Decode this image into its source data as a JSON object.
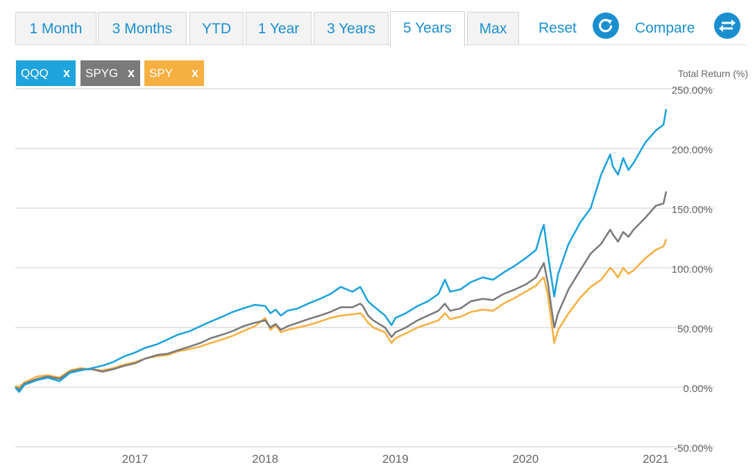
{
  "tabs": [
    {
      "label": "1 Month",
      "active": false
    },
    {
      "label": "3 Months",
      "active": false
    },
    {
      "label": "YTD",
      "active": false
    },
    {
      "label": "1 Year",
      "active": false
    },
    {
      "label": "3 Years",
      "active": false
    },
    {
      "label": "5 Years",
      "active": true
    },
    {
      "label": "Max",
      "active": false
    }
  ],
  "actions": {
    "reset_label": "Reset",
    "reset_icon": "refresh-icon",
    "compare_label": "Compare",
    "compare_icon": "swap-arrows-icon"
  },
  "remove_symbol": "x",
  "colors": {
    "accent": "#1a8fd0",
    "QQQ": "#1ea3dc",
    "SPYG": "#7a7a7a",
    "SPY": "#f6b042",
    "grid": "#cccccc"
  },
  "chart_data": {
    "type": "line",
    "ylabel": "Total Return (%)",
    "ylim": [
      -50,
      250
    ],
    "y_ticks": [
      "250.00%",
      "200.00%",
      "150.00%",
      "100.00%",
      "50.00%",
      "0.00%",
      "-50.00%"
    ],
    "y_tick_values": [
      250,
      200,
      150,
      100,
      50,
      0,
      -50
    ],
    "x_ticks": [
      "2017",
      "2018",
      "2019",
      "2020",
      "2021"
    ],
    "x_tick_values": [
      2017.0,
      2018.0,
      2019.0,
      2020.0,
      2021.0
    ],
    "xlim": [
      2016.08,
      2021.08
    ],
    "grid": true,
    "series": [
      {
        "name": "QQQ",
        "x": [
          2016.08,
          2016.11,
          2016.15,
          2016.25,
          2016.33,
          2016.42,
          2016.5,
          2016.58,
          2016.67,
          2016.75,
          2016.83,
          2016.92,
          2017.0,
          2017.08,
          2017.17,
          2017.25,
          2017.33,
          2017.42,
          2017.5,
          2017.58,
          2017.67,
          2017.75,
          2017.83,
          2017.92,
          2018.0,
          2018.04,
          2018.08,
          2018.12,
          2018.17,
          2018.25,
          2018.33,
          2018.42,
          2018.5,
          2018.58,
          2018.67,
          2018.73,
          2018.75,
          2018.79,
          2018.83,
          2018.92,
          2018.97,
          2019.0,
          2019.08,
          2019.17,
          2019.25,
          2019.33,
          2019.38,
          2019.42,
          2019.5,
          2019.58,
          2019.67,
          2019.75,
          2019.83,
          2019.92,
          2020.0,
          2020.08,
          2020.12,
          2020.14,
          2020.17,
          2020.22,
          2020.25,
          2020.33,
          2020.42,
          2020.5,
          2020.58,
          2020.65,
          2020.67,
          2020.71,
          2020.75,
          2020.79,
          2020.83,
          2020.92,
          2021.0,
          2021.06,
          2021.08
        ],
        "values": [
          0,
          -4,
          2,
          6,
          8,
          5,
          12,
          14,
          16,
          18,
          21,
          26,
          29,
          33,
          36,
          40,
          44,
          47,
          51,
          55,
          59,
          63,
          66,
          69,
          68,
          62,
          65,
          60,
          64,
          66,
          70,
          74,
          78,
          84,
          80,
          84,
          80,
          72,
          68,
          60,
          52,
          58,
          62,
          68,
          72,
          78,
          90,
          80,
          82,
          88,
          92,
          90,
          96,
          102,
          108,
          115,
          130,
          136,
          112,
          76,
          95,
          120,
          138,
          150,
          178,
          195,
          185,
          178,
          192,
          182,
          188,
          205,
          215,
          220,
          233
        ]
      },
      {
        "name": "SPYG",
        "x": [
          2016.08,
          2016.11,
          2016.15,
          2016.25,
          2016.33,
          2016.42,
          2016.5,
          2016.58,
          2016.67,
          2016.75,
          2016.83,
          2016.92,
          2017.0,
          2017.08,
          2017.17,
          2017.25,
          2017.33,
          2017.42,
          2017.5,
          2017.58,
          2017.67,
          2017.75,
          2017.83,
          2017.92,
          2018.0,
          2018.04,
          2018.08,
          2018.12,
          2018.17,
          2018.25,
          2018.33,
          2018.42,
          2018.5,
          2018.58,
          2018.67,
          2018.73,
          2018.75,
          2018.79,
          2018.83,
          2018.92,
          2018.97,
          2019.0,
          2019.08,
          2019.17,
          2019.25,
          2019.33,
          2019.38,
          2019.42,
          2019.5,
          2019.58,
          2019.67,
          2019.75,
          2019.83,
          2019.92,
          2020.0,
          2020.08,
          2020.12,
          2020.14,
          2020.17,
          2020.22,
          2020.25,
          2020.33,
          2020.42,
          2020.5,
          2020.58,
          2020.65,
          2020.67,
          2020.71,
          2020.75,
          2020.79,
          2020.83,
          2020.92,
          2021.0,
          2021.06,
          2021.08
        ],
        "values": [
          0,
          -2,
          3,
          7,
          9,
          7,
          13,
          15,
          15,
          13,
          15,
          18,
          20,
          24,
          27,
          28,
          31,
          34,
          37,
          41,
          44,
          47,
          51,
          54,
          56,
          50,
          53,
          48,
          51,
          54,
          57,
          60,
          63,
          67,
          67,
          70,
          68,
          60,
          56,
          50,
          42,
          46,
          50,
          56,
          60,
          64,
          70,
          64,
          66,
          72,
          74,
          73,
          78,
          82,
          86,
          92,
          100,
          104,
          88,
          50,
          62,
          82,
          98,
          112,
          120,
          132,
          128,
          122,
          130,
          126,
          132,
          142,
          152,
          154,
          164
        ]
      },
      {
        "name": "SPY",
        "x": [
          2016.08,
          2016.11,
          2016.15,
          2016.25,
          2016.33,
          2016.42,
          2016.5,
          2016.58,
          2016.67,
          2016.75,
          2016.83,
          2016.92,
          2017.0,
          2017.08,
          2017.17,
          2017.25,
          2017.33,
          2017.42,
          2017.5,
          2017.58,
          2017.67,
          2017.75,
          2017.83,
          2017.92,
          2018.0,
          2018.04,
          2018.08,
          2018.12,
          2018.17,
          2018.25,
          2018.33,
          2018.42,
          2018.5,
          2018.58,
          2018.67,
          2018.73,
          2018.75,
          2018.79,
          2018.83,
          2018.92,
          2018.97,
          2019.0,
          2019.08,
          2019.17,
          2019.25,
          2019.33,
          2019.38,
          2019.42,
          2019.5,
          2019.58,
          2019.67,
          2019.75,
          2019.83,
          2019.92,
          2020.0,
          2020.08,
          2020.12,
          2020.14,
          2020.17,
          2020.22,
          2020.25,
          2020.33,
          2020.42,
          2020.5,
          2020.58,
          2020.65,
          2020.67,
          2020.71,
          2020.75,
          2020.79,
          2020.83,
          2020.92,
          2021.0,
          2021.06,
          2021.08
        ],
        "values": [
          1,
          0,
          4,
          9,
          10,
          8,
          14,
          16,
          15,
          14,
          16,
          19,
          21,
          24,
          26,
          27,
          30,
          32,
          34,
          37,
          40,
          43,
          47,
          51,
          58,
          48,
          52,
          46,
          48,
          50,
          52,
          55,
          58,
          60,
          61,
          62,
          60,
          54,
          50,
          46,
          37,
          41,
          45,
          50,
          53,
          56,
          62,
          57,
          59,
          63,
          65,
          64,
          70,
          75,
          80,
          85,
          90,
          92,
          78,
          37,
          48,
          62,
          75,
          84,
          90,
          100,
          98,
          92,
          100,
          95,
          98,
          108,
          115,
          118,
          124
        ]
      }
    ]
  }
}
